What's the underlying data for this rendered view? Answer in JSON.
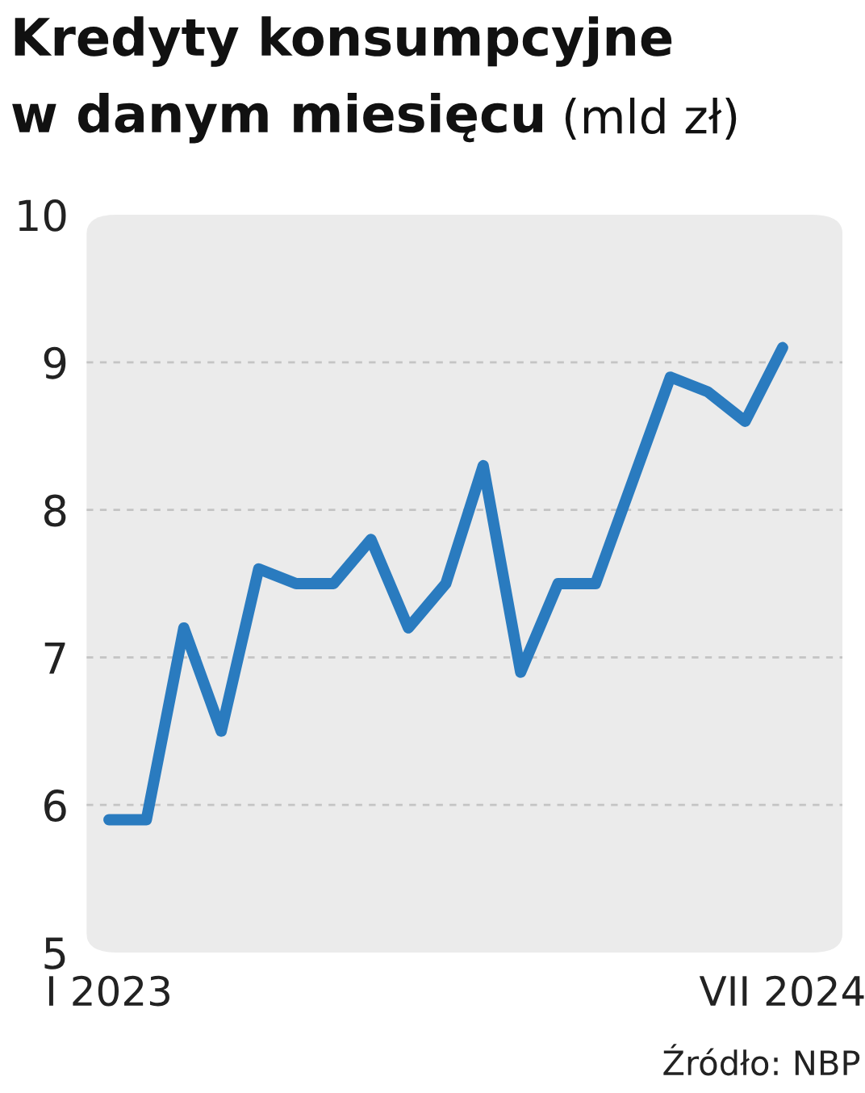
{
  "chart_data": {
    "type": "line",
    "title": "Kredyty konsumpcyjne w danym miesięcu",
    "ylabel": "(mld zł)",
    "categories": [
      "I 2023",
      null,
      null,
      null,
      null,
      null,
      null,
      null,
      null,
      null,
      null,
      null,
      null,
      null,
      null,
      null,
      null,
      null,
      "VII 2024"
    ],
    "series": [
      {
        "color": "#2a7bbf",
        "values": [
          5.9,
          5.9,
          7.2,
          6.5,
          7.6,
          7.5,
          7.5,
          7.8,
          7.2,
          7.5,
          8.3,
          6.9,
          7.5,
          7.5,
          8.2,
          8.9,
          8.8,
          8.6,
          9.1
        ]
      }
    ],
    "ylim": [
      5,
      10
    ],
    "yticks": [
      5,
      6,
      7,
      8,
      9,
      10
    ],
    "grid": "y",
    "marker": "none",
    "line_style": "solid",
    "legend": false,
    "annotations": [
      "Źródło: NBP"
    ]
  }
}
